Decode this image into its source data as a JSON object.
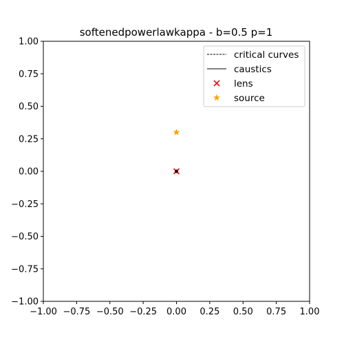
{
  "chart_data": {
    "type": "scatter",
    "title": "softenedpowerlawkappa - b=0.5 p=1",
    "xlabel": "",
    "ylabel": "",
    "xlim": [
      -1.0,
      1.0
    ],
    "ylim": [
      -1.0,
      1.0
    ],
    "x_ticks": [
      "−1.00",
      "−0.75",
      "−0.50",
      "−0.25",
      "0.00",
      "0.25",
      "0.50",
      "0.75",
      "1.00"
    ],
    "y_ticks": [
      "1.00",
      "0.75",
      "0.50",
      "0.25",
      "0.00",
      "−0.25",
      "−0.50",
      "−0.75",
      "−1.00"
    ],
    "grid": false,
    "legend_position": "top-right",
    "series": [
      {
        "name": "critical curves",
        "kind": "line",
        "style": "dashed",
        "color": "#000000",
        "points": []
      },
      {
        "name": "caustics",
        "kind": "line",
        "style": "solid",
        "color": "#000000",
        "points": []
      },
      {
        "name": "lens",
        "kind": "scatter",
        "marker": "x",
        "color": "#e41a1c",
        "points": [
          [
            0.0,
            0.0
          ]
        ]
      },
      {
        "name": "source",
        "kind": "scatter",
        "marker": "star",
        "color": "#ffa500",
        "points": [
          [
            0.0,
            0.3
          ]
        ]
      }
    ]
  }
}
